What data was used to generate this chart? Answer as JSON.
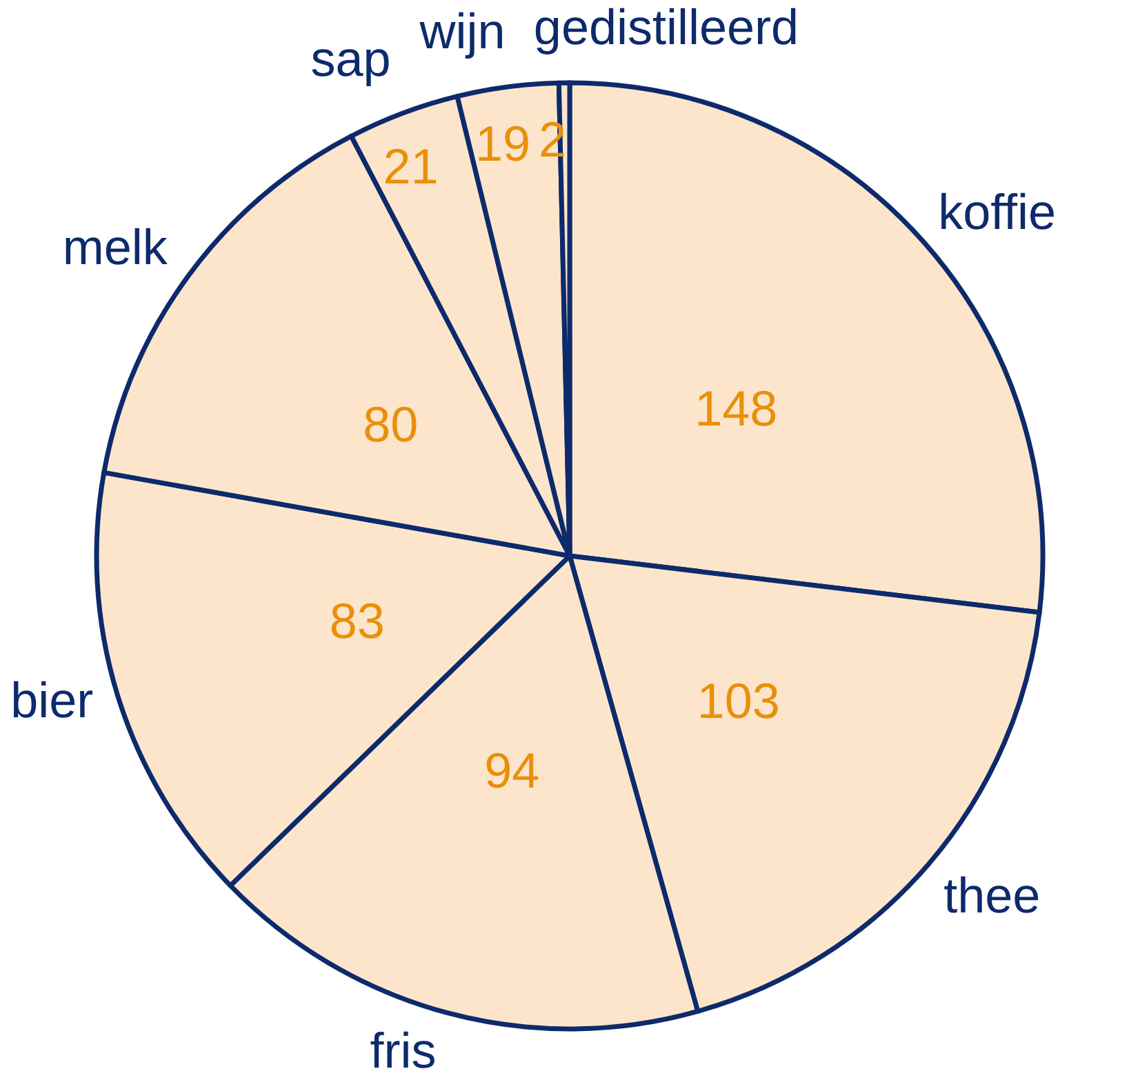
{
  "chart_data": {
    "type": "pie",
    "categories": [
      "koffie",
      "thee",
      "fris",
      "bier",
      "melk",
      "sap",
      "wijn",
      "gedistilleerd"
    ],
    "values": [
      148,
      103,
      94,
      83,
      80,
      21,
      19,
      2
    ],
    "colors": [
      "#fde5cc",
      "#fde5cc",
      "#fde5cc",
      "#fde5cc",
      "#fde5cc",
      "#fde5cc",
      "#fde5cc",
      "#fde5cc"
    ],
    "data_labels": true
  }
}
